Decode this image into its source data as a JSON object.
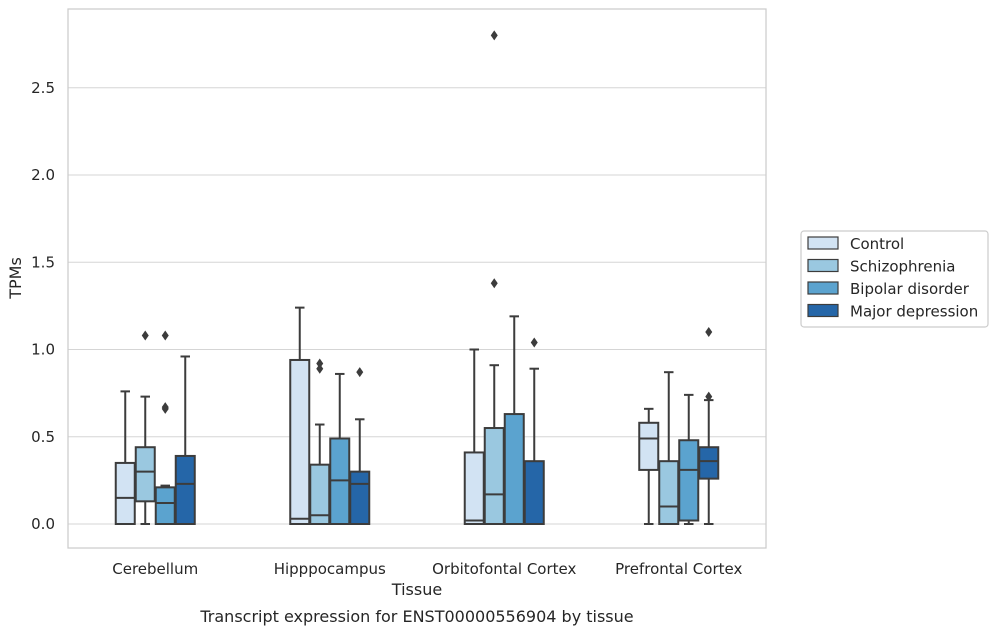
{
  "chart_data": {
    "type": "box",
    "xlabel": "Tissue",
    "ylabel": "TPMs",
    "caption": "Transcript expression for ENST00000556904 by tissue",
    "ylim": [
      -0.14,
      2.95
    ],
    "yticks": [
      "0.0",
      "0.5",
      "1.0",
      "1.5",
      "2.0",
      "2.5"
    ],
    "grid": "horizontal",
    "legend_position": "right",
    "categories": [
      "Cerebellum",
      "Hipppocampus",
      "Orbitofontal Cortex",
      "Prefrontal Cortex"
    ],
    "series": [
      {
        "name": "Control",
        "color": "#d2e3f3",
        "boxes": [
          {
            "whislo": 0.0,
            "q1": 0.0,
            "med": 0.15,
            "q3": 0.35,
            "whishi": 0.76,
            "fliers": []
          },
          {
            "whislo": 0.0,
            "q1": 0.0,
            "med": 0.03,
            "q3": 0.94,
            "whishi": 1.24,
            "fliers": []
          },
          {
            "whislo": 0.0,
            "q1": 0.0,
            "med": 0.02,
            "q3": 0.41,
            "whishi": 1.0,
            "fliers": []
          },
          {
            "whislo": 0.0,
            "q1": 0.31,
            "med": 0.49,
            "q3": 0.58,
            "whishi": 0.66,
            "fliers": []
          }
        ]
      },
      {
        "name": "Schizophrenia",
        "color": "#9ac8e0",
        "boxes": [
          {
            "whislo": 0.0,
            "q1": 0.13,
            "med": 0.3,
            "q3": 0.44,
            "whishi": 0.73,
            "fliers": [
              1.08
            ]
          },
          {
            "whislo": 0.0,
            "q1": 0.0,
            "med": 0.05,
            "q3": 0.34,
            "whishi": 0.57,
            "fliers": [
              0.89,
              0.92
            ]
          },
          {
            "whislo": 0.0,
            "q1": 0.0,
            "med": 0.17,
            "q3": 0.55,
            "whishi": 0.91,
            "fliers": [
              1.38,
              2.8
            ]
          },
          {
            "whislo": 0.0,
            "q1": 0.0,
            "med": 0.1,
            "q3": 0.36,
            "whishi": 0.87,
            "fliers": []
          }
        ]
      },
      {
        "name": "Bipolar disorder",
        "color": "#5ba3cf",
        "boxes": [
          {
            "whislo": 0.0,
            "q1": 0.0,
            "med": 0.12,
            "q3": 0.21,
            "whishi": 0.22,
            "fliers": [
              0.66,
              0.67,
              1.08
            ]
          },
          {
            "whislo": 0.0,
            "q1": 0.0,
            "med": 0.25,
            "q3": 0.49,
            "whishi": 0.86,
            "fliers": []
          },
          {
            "whislo": 0.0,
            "q1": 0.0,
            "med": 0.0,
            "q3": 0.63,
            "whishi": 1.19,
            "fliers": []
          },
          {
            "whislo": 0.0,
            "q1": 0.02,
            "med": 0.31,
            "q3": 0.48,
            "whishi": 0.74,
            "fliers": []
          }
        ]
      },
      {
        "name": "Major depression",
        "color": "#2566a8",
        "boxes": [
          {
            "whislo": 0.0,
            "q1": 0.0,
            "med": 0.23,
            "q3": 0.39,
            "whishi": 0.96,
            "fliers": []
          },
          {
            "whislo": 0.0,
            "q1": 0.0,
            "med": 0.23,
            "q3": 0.3,
            "whishi": 0.6,
            "fliers": [
              0.87
            ]
          },
          {
            "whislo": 0.0,
            "q1": 0.0,
            "med": 0.0,
            "q3": 0.36,
            "whishi": 0.89,
            "fliers": [
              1.04
            ]
          },
          {
            "whislo": 0.0,
            "q1": 0.26,
            "med": 0.36,
            "q3": 0.44,
            "whishi": 0.71,
            "fliers": [
              0.73,
              1.1
            ]
          }
        ]
      }
    ]
  }
}
